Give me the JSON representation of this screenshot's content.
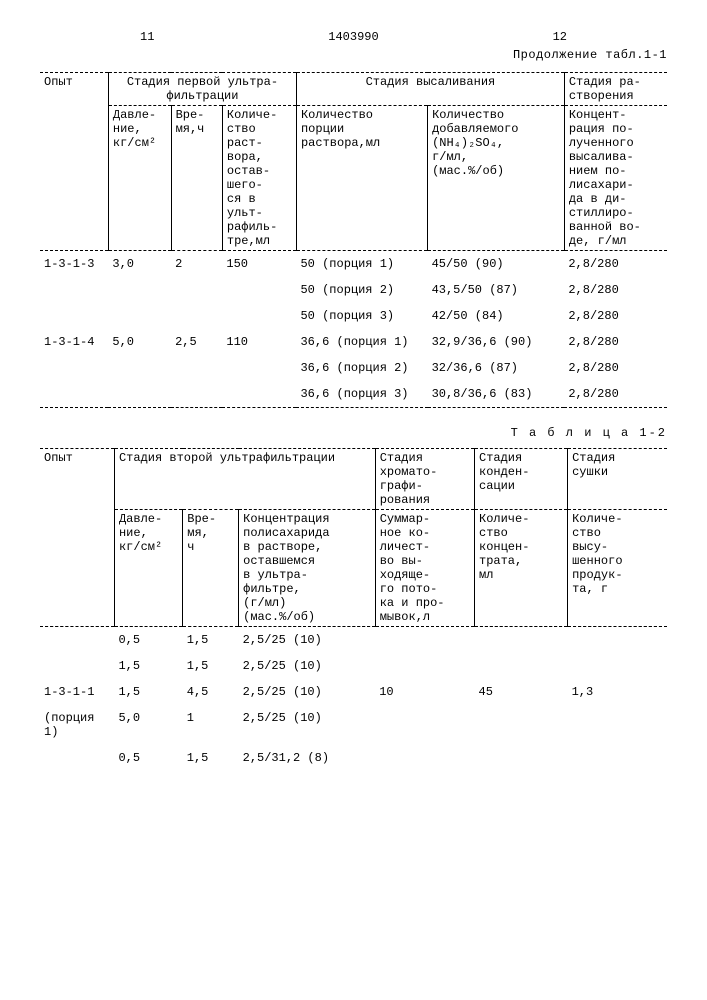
{
  "page": {
    "left_num": "11",
    "doc_num": "1403990",
    "right_num": "12",
    "continuation": "Продолжение табл.1-1"
  },
  "table1": {
    "h_opyt": "Опыт",
    "h_stage1": "Стадия первой ультра-\nфильтрации",
    "h_salting": "Стадия высаливания",
    "h_dissolve": "Стадия ра-\nстворения",
    "h_pressure": "Давле-\nние,\nкг/см²",
    "h_time": "Вре-\nмя,ч",
    "h_qty_sol": "Количе-\nство\nраст-\nвора,\nостав-\nшего-\nся в\nульт-\nрафиль-\nтре,мл",
    "h_portion": "Количество\nпорции\nраствора,мл",
    "h_nh4": "Количество\nдобавляемого\n(NH₄)₂SO₄,\nг/мл,\n(мас.%/об)",
    "h_conc": "Концент-\nрация по-\nлученного\nвысалива-\nнием по-\nлисахари-\nда в ди-\nстиллиро-\nванной во-\nде, г/мл",
    "rows": [
      {
        "op": "1-3-1-3",
        "p": "3,0",
        "t": "2",
        "q": "150",
        "por": "50 (порция 1)",
        "nh": "45/50 (90)",
        "c": "2,8/280"
      },
      {
        "op": "",
        "p": "",
        "t": "",
        "q": "",
        "por": "50 (порция 2)",
        "nh": "43,5/50 (87)",
        "c": "2,8/280"
      },
      {
        "op": "",
        "p": "",
        "t": "",
        "q": "",
        "por": "50 (порция 3)",
        "nh": "42/50 (84)",
        "c": "2,8/280"
      },
      {
        "op": "1-3-1-4",
        "p": "5,0",
        "t": "2,5",
        "q": "110",
        "por": "36,6 (порция 1)",
        "nh": "32,9/36,6 (90)",
        "c": "2,8/280"
      },
      {
        "op": "",
        "p": "",
        "t": "",
        "q": "",
        "por": "36,6 (порция 2)",
        "nh": "32/36,6 (87)",
        "c": "2,8/280"
      },
      {
        "op": "",
        "p": "",
        "t": "",
        "q": "",
        "por": "36,6 (порция 3)",
        "nh": "30,8/36,6 (83)",
        "c": "2,8/280"
      }
    ]
  },
  "table2_caption": "Т а б л и ц а  1-2",
  "table2": {
    "h_opyt": "Опыт",
    "h_stage2": "Стадия второй ультрафильтрации",
    "h_chrom": "Стадия\nхромато-\nграфи-\nрования",
    "h_cond": "Стадия\nконден-\nсации",
    "h_dry": "Стадия\nсушки",
    "h_pressure": "Давле-\nние,\nкг/см²",
    "h_time": "Вре-\nмя,\nч",
    "h_conc": "Концентрация\nполисахарида\nв растворе,\nоставшемся\nв ультра-\nфильтре,\n(г/мл)\n(мас.%/об)",
    "h_sum": "Суммар-\nное ко-\nличест-\nво вы-\nходяще-\nго пото-\nка и про-\nмывок,л",
    "h_qconc": "Количе-\nство\nконцен-\nтрата,\nмл",
    "h_qdry": "Количе-\nство\nвысу-\nшенного\nпродук-\nта,  г",
    "rows": [
      {
        "op": "",
        "p": "0,5",
        "t": "1,5",
        "c": "2,5/25 (10)",
        "s": "",
        "q": "",
        "d": ""
      },
      {
        "op": "",
        "p": "1,5",
        "t": "1,5",
        "c": "2,5/25 (10)",
        "s": "",
        "q": "",
        "d": ""
      },
      {
        "op": "1-3-1-1",
        "p": "1,5",
        "t": "4,5",
        "c": "2,5/25 (10)",
        "s": "10",
        "q": "45",
        "d": "1,3"
      },
      {
        "op": "(порция\n1)",
        "p": "5,0",
        "t": "1",
        "c": "2,5/25 (10)",
        "s": "",
        "q": "",
        "d": ""
      },
      {
        "op": "",
        "p": "0,5",
        "t": "1,5",
        "c": "2,5/31,2 (8)",
        "s": "",
        "q": "",
        "d": ""
      }
    ]
  }
}
